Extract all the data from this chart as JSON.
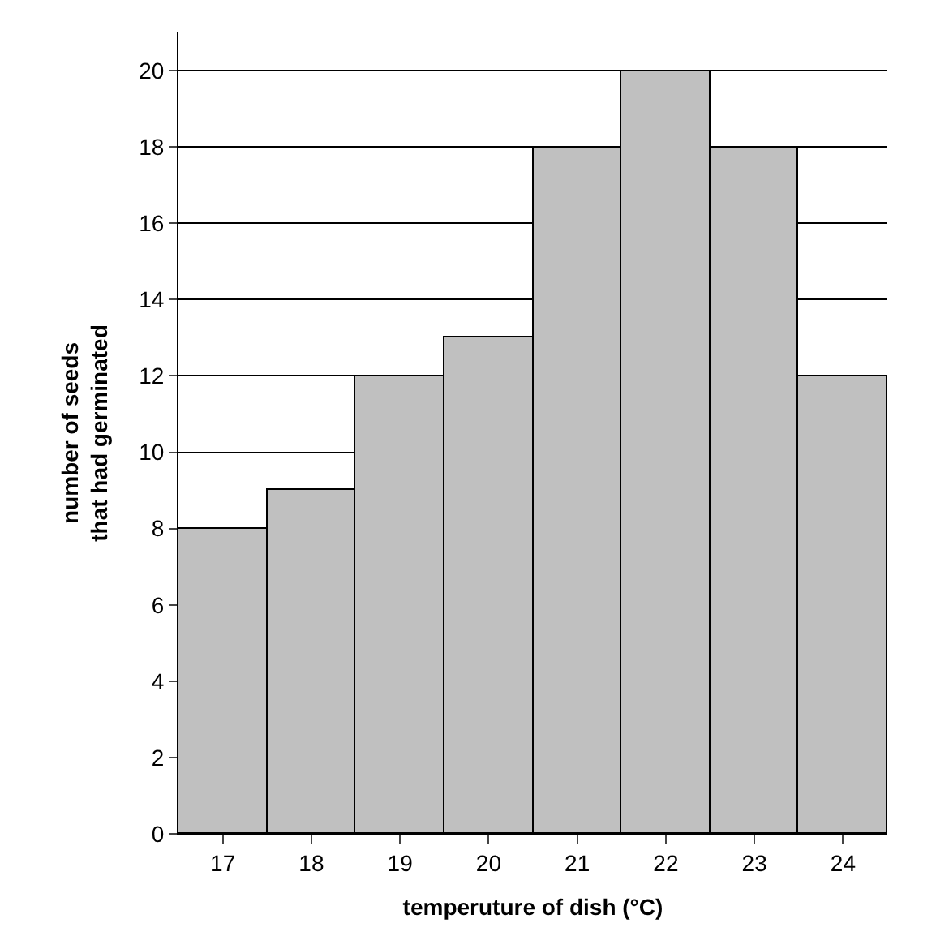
{
  "chart_data": {
    "type": "bar",
    "xlabel": "temperuture of dish (°C)",
    "ylabel": "number of seeds\nthat had germinated",
    "categories": [
      "17",
      "18",
      "19",
      "20",
      "21",
      "22",
      "23",
      "24"
    ],
    "values": [
      8,
      9,
      12,
      13,
      18,
      20,
      18,
      12
    ],
    "color": "#c0c0c0",
    "ylim": [
      0,
      21
    ],
    "yticks": [
      0,
      2,
      4,
      6,
      8,
      10,
      12,
      14,
      16,
      18,
      20
    ],
    "grid": "y"
  }
}
